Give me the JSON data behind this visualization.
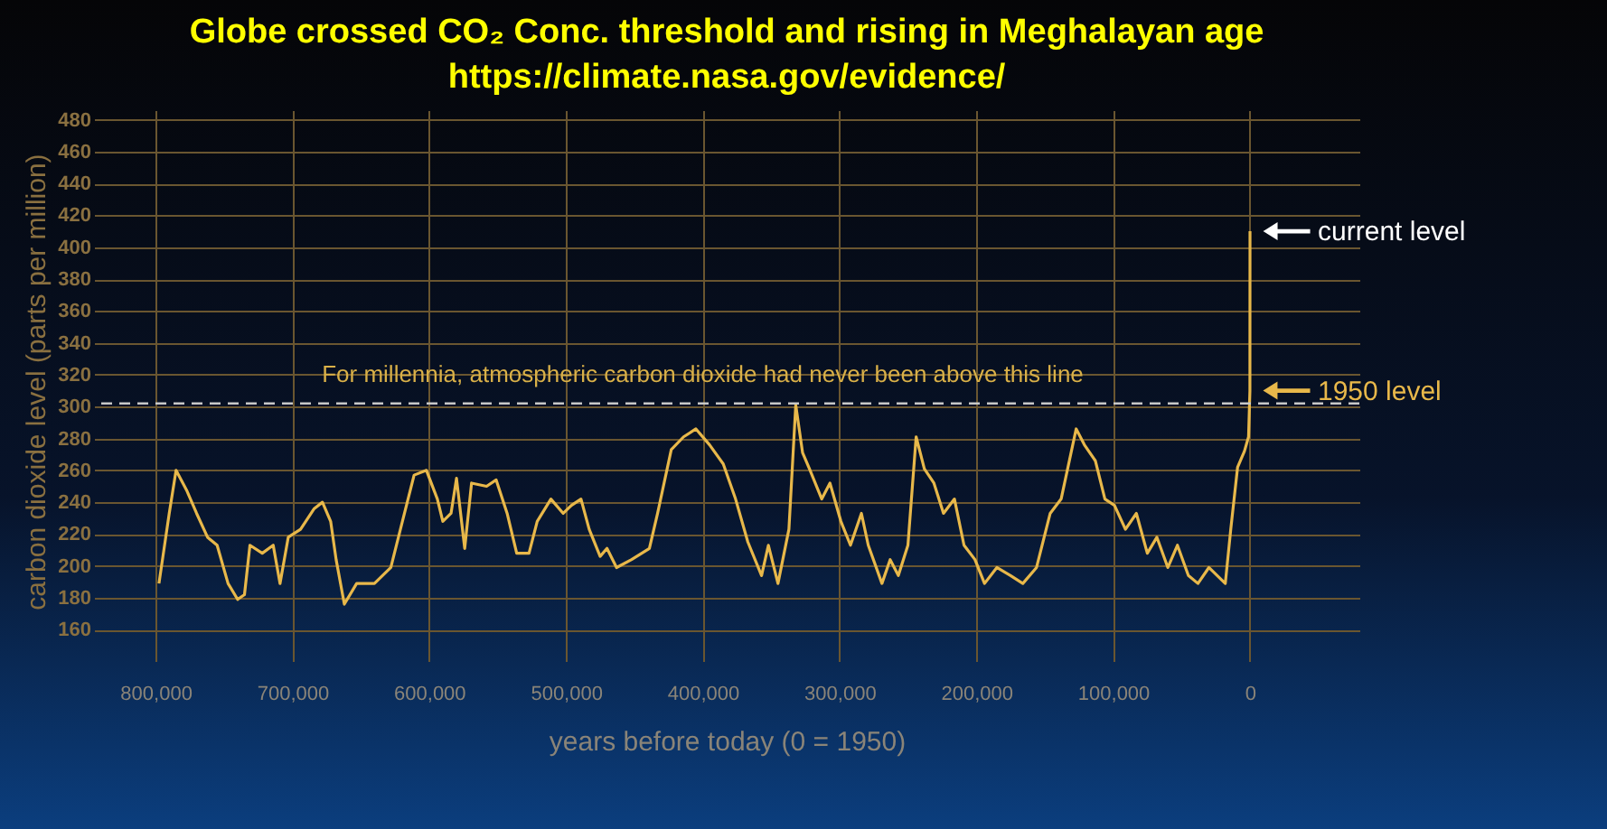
{
  "chart_data": {
    "type": "line",
    "title": "Globe crossed CO₂ Conc. threshold and rising in Meghalayan age",
    "subtitle": "https://climate.nasa.gov/evidence/",
    "xlabel": "years before today (0 = 1950)",
    "ylabel": "carbon dioxide level (parts per million)",
    "x": [
      797500,
      790000,
      785000,
      777000,
      770000,
      762000,
      755000,
      747000,
      740000,
      735000,
      731000,
      722000,
      714000,
      709000,
      703000,
      694000,
      684000,
      678000,
      672000,
      668000,
      662000,
      653000,
      640000,
      628000,
      621000,
      611000,
      602000,
      594000,
      590000,
      584000,
      580000,
      574000,
      569000,
      558000,
      551000,
      543000,
      536000,
      527000,
      521000,
      511000,
      502000,
      496000,
      489000,
      483000,
      475000,
      470000,
      463000,
      452000,
      439000,
      433000,
      423000,
      414000,
      405000,
      395000,
      385000,
      376000,
      367000,
      357000,
      352000,
      345000,
      337000,
      332000,
      327000,
      322000,
      313000,
      307000,
      299000,
      292000,
      284000,
      279000,
      269000,
      263000,
      257000,
      250000,
      244000,
      238000,
      231000,
      224000,
      216000,
      209000,
      201000,
      194000,
      185000,
      175000,
      166000,
      156000,
      146000,
      138000,
      127000,
      121000,
      113000,
      106000,
      99000,
      91000,
      83000,
      75000,
      68000,
      60000,
      53000,
      45000,
      38000,
      30000,
      18000,
      14000,
      9000,
      4000,
      1000,
      0,
      -68
    ],
    "series": [
      {
        "color": "#e8b84a",
        "values": [
          189,
          233,
          260,
          247,
          233,
          218,
          213,
          189,
          179,
          182,
          213,
          208,
          213,
          189,
          218,
          223,
          236,
          240,
          228,
          204,
          176,
          189,
          189,
          199,
          223,
          257,
          260,
          242,
          228,
          233,
          255,
          211,
          252,
          250,
          254,
          233,
          208,
          208,
          228,
          242,
          233,
          238,
          242,
          223,
          206,
          211,
          199,
          204,
          211,
          233,
          273,
          281,
          286,
          276,
          264,
          242,
          215,
          194,
          213,
          189,
          223,
          301,
          271,
          261,
          242,
          252,
          228,
          213,
          233,
          213,
          189,
          204,
          194,
          213,
          281,
          261,
          252,
          233,
          242,
          213,
          204,
          189,
          199,
          194,
          189,
          199,
          233,
          242,
          286,
          276,
          266,
          242,
          238,
          223,
          233,
          208,
          218,
          199,
          213,
          194,
          189,
          199,
          189,
          223,
          262,
          272,
          281,
          310,
          410
        ]
      }
    ],
    "xlim": [
      845000,
      -80000
    ],
    "xticks": [
      {
        "value": 800000,
        "label": "800,000"
      },
      {
        "value": 700000,
        "label": "700,000"
      },
      {
        "value": 600000,
        "label": "600,000"
      },
      {
        "value": 500000,
        "label": "500,000"
      },
      {
        "value": 400000,
        "label": "400,000"
      },
      {
        "value": 300000,
        "label": "300,000"
      },
      {
        "value": 200000,
        "label": "200,000"
      },
      {
        "value": 100000,
        "label": "100,000"
      },
      0
    ],
    "ylim": [
      146,
      486
    ],
    "yticks": [
      160,
      180,
      200,
      220,
      240,
      260,
      280,
      300,
      320,
      340,
      360,
      380,
      400,
      420,
      440,
      460,
      480
    ],
    "grid": true,
    "ref_lines": [
      {
        "axis": "y",
        "value": 302,
        "label": "For millennia, atmospheric carbon dioxide had never been above this line",
        "color": "#c8c8c8",
        "line_style": "dashed"
      }
    ],
    "annotations": [
      {
        "text": "current level",
        "x": -68,
        "y": 410
      },
      {
        "text": "1950 level",
        "x": 0,
        "y": 310
      }
    ],
    "line_style": "solid"
  }
}
